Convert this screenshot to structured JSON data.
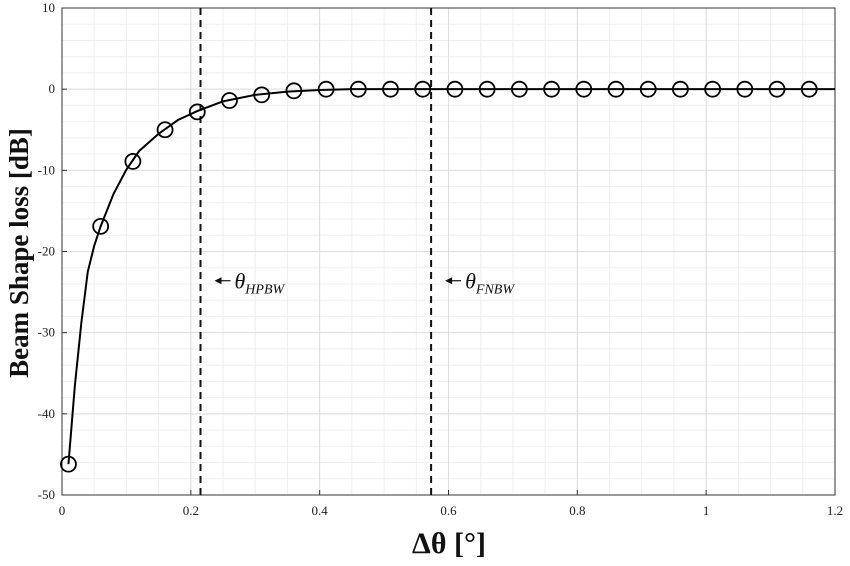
{
  "chart_data": {
    "type": "line",
    "xlabel": "Δθ [°]",
    "ylabel": "Beam Shape loss [dB]",
    "xlim": [
      0,
      1.2
    ],
    "ylim": [
      -50,
      10
    ],
    "xticks": [
      0,
      0.2,
      0.4,
      0.6,
      0.8,
      1,
      1.2
    ],
    "xtick_labels": [
      "0",
      "0.2",
      "0.4",
      "0.6",
      "0.8",
      "1",
      "1.2"
    ],
    "yticks": [
      -50,
      -40,
      -30,
      -20,
      -10,
      0,
      10
    ],
    "ytick_labels": [
      "-50",
      "-40",
      "-30",
      "-20",
      "-10",
      "0",
      "10"
    ],
    "grid": true,
    "minor_grid": true,
    "series": [
      {
        "style": "line",
        "color": "#000000",
        "x": [
          0.01,
          0.02,
          0.03,
          0.04,
          0.05,
          0.06,
          0.08,
          0.1,
          0.12,
          0.15,
          0.18,
          0.21,
          0.25,
          0.3,
          0.35,
          0.4,
          0.45,
          0.5,
          0.6,
          0.7,
          0.8,
          0.9,
          1.0,
          1.1,
          1.2
        ],
        "y": [
          -46.2,
          -36.5,
          -28.8,
          -22.5,
          -19.3,
          -16.9,
          -12.9,
          -9.9,
          -7.6,
          -5.5,
          -3.8,
          -2.7,
          -1.5,
          -0.7,
          -0.3,
          -0.1,
          0,
          0,
          0,
          0,
          0,
          0,
          0,
          0,
          0
        ]
      },
      {
        "style": "markers",
        "marker": "circle",
        "color": "#000000",
        "x": [
          0.01,
          0.06,
          0.11,
          0.16,
          0.21,
          0.26,
          0.31,
          0.36,
          0.41,
          0.46,
          0.51,
          0.56,
          0.61,
          0.66,
          0.71,
          0.76,
          0.81,
          0.86,
          0.91,
          0.96,
          1.01,
          1.06,
          1.11,
          1.16
        ],
        "y": [
          -46.2,
          -16.9,
          -8.9,
          -5.0,
          -2.8,
          -1.4,
          -0.7,
          -0.2,
          0,
          0,
          0,
          0,
          0,
          0,
          0,
          0,
          0,
          0,
          0,
          0,
          0,
          0,
          0,
          0
        ]
      }
    ],
    "vlines": [
      {
        "x": 0.215,
        "style": "dashed",
        "label_base": "θ",
        "label_sub": "HPBW",
        "label_y": -23.6
      },
      {
        "x": 0.573,
        "style": "dashed",
        "label_base": "θ",
        "label_sub": "FNBW",
        "label_y": -23.6
      }
    ],
    "colors": {
      "line": "#000000",
      "grid_major": "#dddddd",
      "grid_minor": "#efefef"
    }
  }
}
